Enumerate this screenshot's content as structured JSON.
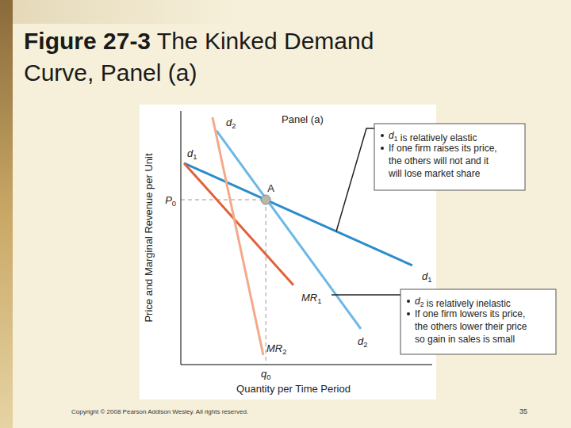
{
  "chart_data": {
    "type": "line",
    "title": "Figure 27-3 The Kinked Demand Curve, Panel (a)",
    "panel_label": "Panel (a)",
    "x_label": "Quantity per Time Period",
    "y_label": "Price and Marginal Revenue per Unit",
    "xlim": [
      0,
      100
    ],
    "ylim": [
      0,
      100
    ],
    "xticks": [],
    "yticks": [],
    "tick_labels": false,
    "grid": false,
    "series": [
      {
        "name": "d1",
        "color": "#2b8ccc",
        "x": [
          1.3,
          92.1
        ],
        "values": [
          79.4,
          39.1
        ]
      },
      {
        "name": "d2",
        "color": "#6cb8e6",
        "x": [
          14.2,
          71.6
        ],
        "values": [
          92.2,
          14.1
        ]
      },
      {
        "name": "MR1",
        "color": "#e0623a",
        "x": [
          1.3,
          44.8
        ],
        "values": [
          79.4,
          31.3
        ]
      },
      {
        "name": "MR2",
        "color": "#f4a98a",
        "x": [
          12.6,
          32.8
        ],
        "values": [
          97.5,
          3.75
        ]
      }
    ],
    "points": [
      {
        "name": "A",
        "x": 33.8,
        "y": 65
      }
    ],
    "guides": {
      "x": {
        "label": "q0",
        "value": 33.8
      },
      "y": {
        "label": "P0",
        "value": 65
      }
    },
    "annotations": [
      {
        "target": "d1",
        "bullets": [
          "d1 is relatively elastic",
          "If one firm raises its price, the others will not and it will lose market share"
        ]
      },
      {
        "target": "MR1",
        "bullets": [
          "d2 is relatively inelastic",
          "If one firm lowers its price, the others lower their price so gain in sales is small"
        ]
      }
    ],
    "footer": "Copyright © 2008 Pearson Addison Wesley. All rights reserved.",
    "page": "35"
  }
}
